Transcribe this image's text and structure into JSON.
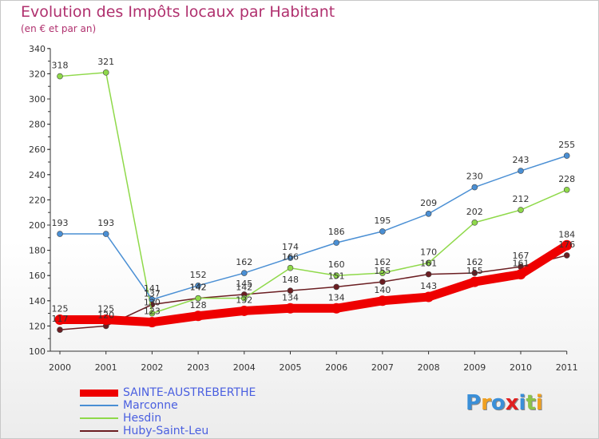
{
  "chart_data": {
    "type": "line",
    "title": "Evolution des Impôts locaux par Habitant",
    "subtitle": "(en € et par an)",
    "xlabel": "",
    "ylabel": "",
    "ylim": [
      100,
      340
    ],
    "yticks": [
      100,
      120,
      140,
      160,
      180,
      200,
      220,
      240,
      260,
      280,
      300,
      320,
      340
    ],
    "categories": [
      "2000",
      "2001",
      "2002",
      "2003",
      "2004",
      "2005",
      "2006",
      "2007",
      "2008",
      "2009",
      "2010",
      "2011"
    ],
    "series": [
      {
        "name": "Huby-Saint-Leu",
        "color": "#6b1e22",
        "values": [
          117,
          120,
          137,
          142,
          145,
          148,
          151,
          155,
          161,
          162,
          167,
          176
        ],
        "labels": [
          "117",
          "120",
          "137",
          "142",
          "145",
          "148",
          "151",
          "155",
          "161",
          "162",
          "167",
          "176"
        ]
      },
      {
        "name": "Hesdin",
        "color": "#8fd94a",
        "values": [
          318,
          321,
          130,
          142,
          142,
          166,
          160,
          162,
          170,
          202,
          212,
          228
        ],
        "labels": [
          "318",
          "321",
          "130",
          "142",
          "142",
          "166",
          "160",
          "162",
          "170",
          "202",
          "212",
          "228"
        ]
      },
      {
        "name": "Marconne",
        "color": "#4a8fd4",
        "values": [
          193,
          193,
          141,
          152,
          162,
          174,
          186,
          195,
          209,
          230,
          243,
          255
        ],
        "labels": [
          "193",
          "193",
          "141",
          "152",
          "162",
          "174",
          "186",
          "195",
          "209",
          "230",
          "243",
          "255"
        ]
      },
      {
        "name": "SAINTE-AUSTREBERTHE",
        "color": "#ee0000",
        "values": [
          125,
          125,
          123,
          128,
          132,
          134,
          134,
          140,
          143,
          155,
          161,
          184
        ],
        "labels": [
          "125",
          "125",
          "123",
          "128",
          "132",
          "134",
          "134",
          "140",
          "143",
          "155",
          "161",
          "184"
        ]
      }
    ],
    "legend": [
      "SAINTE-AUSTREBERTHE",
      "Marconne",
      "Hesdin",
      "Huby-Saint-Leu"
    ],
    "legend_position": "bottom-left",
    "grid": false
  },
  "logo": {
    "letters": [
      "P",
      "r",
      "o",
      "x",
      "i",
      "t",
      "i"
    ],
    "colors": [
      "#3a8fd8",
      "#f0a020",
      "#3a8fd8",
      "#e02020",
      "#3a8fd8",
      "#8bc34a",
      "#f0a020"
    ]
  }
}
